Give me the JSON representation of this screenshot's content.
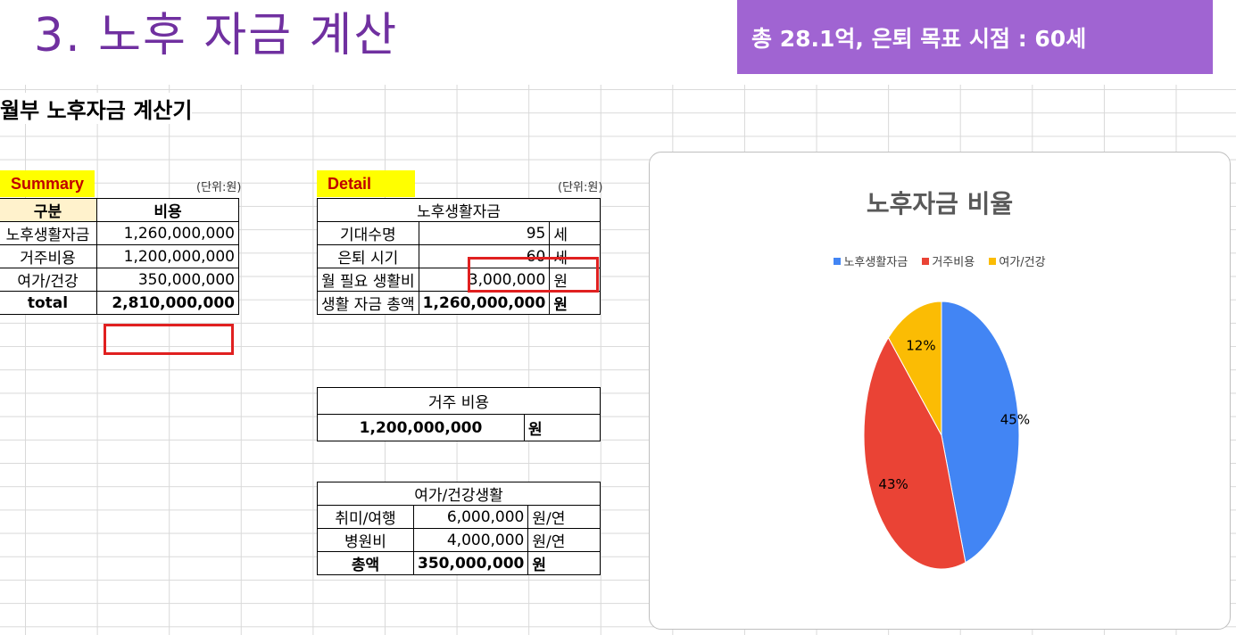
{
  "slide": {
    "title": "3. 노후 자금 계산",
    "banner": "총 28.1억, 은퇴 목표 시점 : 60세"
  },
  "sheet": {
    "title": "월부 노후자금 계산기"
  },
  "summary": {
    "label": "Summary",
    "unit": "(단위:원)",
    "header": [
      "구분",
      "비용"
    ],
    "rows": [
      {
        "name": "노후생활자금",
        "value": "1,260,000,000"
      },
      {
        "name": "거주비용",
        "value": "1,200,000,000"
      },
      {
        "name": "여가/건강",
        "value": "350,000,000"
      }
    ],
    "total": {
      "name": "total",
      "value": "2,810,000,000"
    }
  },
  "detail": {
    "label": "Detail",
    "unit": "(단위:원)",
    "living": {
      "title": "노후생활자금",
      "rows": [
        {
          "name": "기대수명",
          "value": "95",
          "unit": "세"
        },
        {
          "name": "은퇴 시기",
          "value": "60",
          "unit": "세"
        },
        {
          "name": "월 필요 생활비",
          "value": "3,000,000",
          "unit": "원"
        }
      ],
      "total": {
        "name": "생활 자금 총액",
        "value": "1,260,000,000",
        "unit": "원"
      }
    },
    "housing": {
      "title": "거주 비용",
      "value": "1,200,000,000",
      "unit": "원"
    },
    "leisure": {
      "title": "여가/건강생활",
      "rows": [
        {
          "name": "취미/여행",
          "value": "6,000,000",
          "unit": "원/연"
        },
        {
          "name": "병원비",
          "value": "4,000,000",
          "unit": "원/연"
        }
      ],
      "total": {
        "name": "총액",
        "value": "350,000,000",
        "unit": "원"
      }
    }
  },
  "chart_data": {
    "type": "pie",
    "title": "노후자금 비율",
    "categories": [
      "노후생활자금",
      "거주비용",
      "여가/건강"
    ],
    "values": [
      45,
      43,
      12
    ],
    "labels": [
      "45%",
      "43%",
      "12%"
    ],
    "colors": [
      "#4285f4",
      "#ea4335",
      "#fbbc04"
    ],
    "legend": "top"
  }
}
